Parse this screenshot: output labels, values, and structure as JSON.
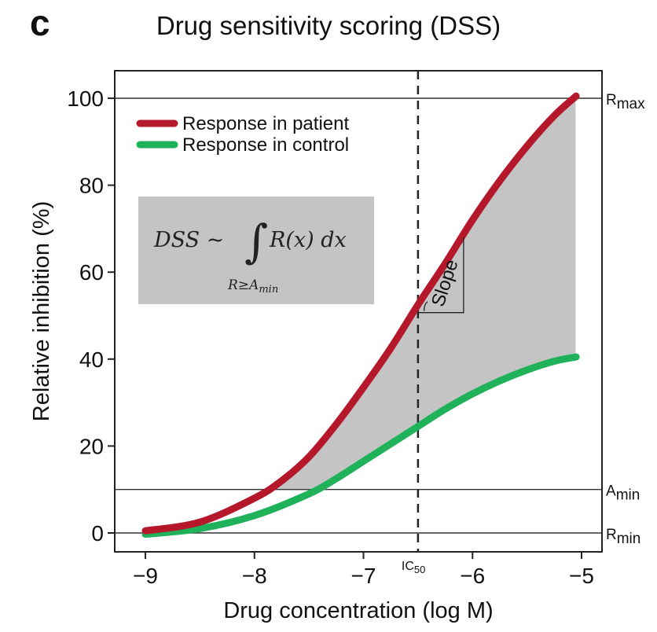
{
  "figure": {
    "panel_letter": "c"
  },
  "chart_data": {
    "type": "line",
    "title": "Drug sensitivity scoring (DSS)",
    "xlabel": "Drug concentration (log M)",
    "ylabel": "Relative inhibition (%)",
    "xlim": [
      -9,
      -5
    ],
    "ylim": [
      0,
      100
    ],
    "xticks": [
      -9,
      -8,
      -7,
      -6,
      -5
    ],
    "xtick_labels": [
      "−9",
      "−8",
      "−7",
      "−6",
      "−5"
    ],
    "yticks": [
      0,
      20,
      40,
      60,
      80,
      100
    ],
    "ytick_labels": [
      "0",
      "20",
      "40",
      "60",
      "80",
      "100"
    ],
    "grid": false,
    "legend_position": "top-left",
    "series": [
      {
        "name": "Response in patient",
        "color": "#b5172b",
        "x": [
          -9.0,
          -8.5,
          -8.0,
          -7.75,
          -7.5,
          -7.25,
          -7.0,
          -6.75,
          -6.5,
          -6.25,
          -6.0,
          -5.75,
          -5.5,
          -5.25,
          -5.05
        ],
        "y": [
          0.5,
          2.5,
          8,
          12,
          17.5,
          25,
          33.5,
          42.5,
          52.5,
          62,
          72,
          81,
          89,
          96,
          100.5
        ]
      },
      {
        "name": "Response in control",
        "color": "#1fb25a",
        "x": [
          -9.0,
          -8.5,
          -8.0,
          -7.5,
          -7.25,
          -7.0,
          -6.75,
          -6.5,
          -6.25,
          -6.0,
          -5.75,
          -5.5,
          -5.25,
          -5.05
        ],
        "y": [
          -0.3,
          1,
          4,
          9,
          12.5,
          16.5,
          20.5,
          24.5,
          28.5,
          32,
          35,
          37.5,
          39.5,
          40.5
        ]
      }
    ],
    "reference_lines": {
      "horizontal": [
        {
          "y": 100,
          "label_main": "R",
          "label_sub": "max"
        },
        {
          "y": 10,
          "label_main": "A",
          "label_sub": "min"
        },
        {
          "y": 0,
          "label_main": "R",
          "label_sub": "min"
        }
      ],
      "vertical": [
        {
          "x": -6.5,
          "style": "dashed",
          "label_main": "IC",
          "label_sub": "50"
        }
      ]
    },
    "shaded_region": {
      "description_source": "area between patient and control curves above A_min",
      "color": "#c4c4c4"
    },
    "slope_annotation": {
      "label": "Slope"
    },
    "formula_box": {
      "lhs": "DSS ~",
      "integrand": "R(x) dx",
      "lower_limit": "R≥A",
      "lower_limit_sub": "min",
      "fill": "#c4c4c4"
    }
  }
}
